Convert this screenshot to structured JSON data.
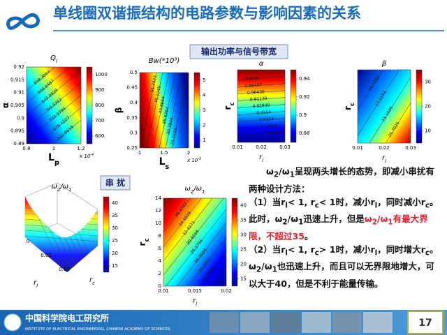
{
  "header": {
    "title": "单线圈双谐振结构的电路参数与影响因素的关系"
  },
  "sections": [
    {
      "label": "输出功率与信号带宽"
    },
    {
      "label": "串 扰"
    }
  ],
  "plots": [
    {
      "title": [
        "Q",
        "l"
      ],
      "xlabel": [
        "L",
        "p"
      ],
      "ylabel": [
        "α"
      ],
      "xmult": [
        "x 10",
        "-4"
      ],
      "xticks": [
        0.8,
        1,
        1.2
      ],
      "yticks": [
        0.89,
        0.895,
        0.9,
        0.905,
        0.91,
        0.915,
        0.92
      ],
      "cticks": [
        600,
        700,
        800,
        900,
        1000
      ],
      "contours": [
        "958.3064",
        "900.6497",
        "845.0929",
        "789.5362",
        "733.9794",
        "678.4227",
        "622.8659"
      ]
    },
    {
      "title": [
        "Bw(*10³)"
      ],
      "xlabel": [
        "L",
        "s"
      ],
      "ylabel": [
        "β"
      ],
      "xmult": [
        "x 10",
        "-5"
      ],
      "xticks": [
        1,
        1.5,
        2
      ],
      "yticks": [
        0.25,
        0.3,
        0.35,
        0.4,
        0.45,
        0.5
      ],
      "cticks": [
        1,
        2,
        3,
        4,
        5
      ],
      "contours": [
        "51.3423",
        "46.1045",
        "40.8664",
        "35.6284",
        "30.3904",
        "25.1524"
      ]
    },
    {
      "title": [
        "α"
      ],
      "xlabel": [
        "r",
        "l"
      ],
      "ylabel": [
        "r",
        "c"
      ],
      "xticks": [
        0.01,
        0.02,
        0.03
      ],
      "yticks": [],
      "cticks": [
        0.88,
        0.9,
        0.92,
        0.94
      ],
      "contours": [
        "0.89035",
        "0.89737",
        "0.90438",
        "0.91139",
        "0.91839",
        "0.9254",
        "0.9324",
        "0.93941",
        "0.94642"
      ]
    },
    {
      "title": [
        "β"
      ],
      "xlabel": [
        "r",
        "l"
      ],
      "ylabel": [
        "r",
        "c"
      ],
      "xticks": [
        0.01,
        0.02,
        0.03
      ],
      "yticks": [],
      "cticks": [
        10,
        20,
        30
      ],
      "contours": [
        "19.7152",
        "17.1152",
        "23.1026",
        "25.7026"
      ]
    },
    {
      "title": [
        "ω",
        "2",
        "/ω",
        "1"
      ],
      "xlabel": [
        "r",
        "l"
      ],
      "ylabel": [
        "r",
        "c"
      ],
      "xticks": [
        0,
        0.02,
        0.04
      ],
      "yticks": [],
      "cticks": [
        15,
        20,
        25,
        30,
        35,
        40
      ],
      "contours": []
    },
    {
      "title": [
        "ω",
        "2",
        "/ω",
        "1"
      ],
      "xlabel": [
        "r",
        "l"
      ],
      "ylabel": [
        "r",
        "c"
      ],
      "xticks": [
        0.01,
        0.015,
        0.02
      ],
      "yticks": [
        0,
        2,
        4,
        6,
        8,
        10,
        12,
        14
      ],
      "cticks": [
        15,
        20,
        25,
        30,
        35,
        40
      ],
      "contours": [
        "36.4747",
        "34.4509",
        "32.4271",
        "30.4034",
        "28.3796",
        "26.3558",
        "24.3321",
        "22.3083"
      ]
    }
  ],
  "text": [
    [
      {
        "text": "ω"
      },
      {
        "text": "2",
        "sub": true
      },
      {
        "text": "/ω"
      },
      {
        "text": "1",
        "sub": true
      },
      {
        "text": "呈现两头增长的态势，即减小串扰有两种设计方法："
      }
    ],
    [
      {
        "text": "（1）当r"
      },
      {
        "text": "l",
        "sub": true
      },
      {
        "text": "< 1, r"
      },
      {
        "text": "c",
        "sub": true
      },
      {
        "text": "< 1时，减小r"
      },
      {
        "text": "l",
        "sub": true
      },
      {
        "text": "，同时减小r"
      },
      {
        "text": "c",
        "sub": true
      },
      {
        "text": "。此时，ω"
      },
      {
        "text": "2",
        "sub": true
      },
      {
        "text": "/ω"
      },
      {
        "text": "1",
        "sub": true
      },
      {
        "text": "迅速上升，但是"
      },
      {
        "text": "ω",
        "red": true
      },
      {
        "text": "2",
        "sub": true,
        "red": true
      },
      {
        "text": "/ω",
        "red": true
      },
      {
        "text": "1",
        "sub": true,
        "red": true
      },
      {
        "text": "有最大界限，不超过35",
        "red": true
      },
      {
        "text": "。"
      }
    ],
    [
      {
        "text": "（2）当r"
      },
      {
        "text": "l",
        "sub": true
      },
      {
        "text": "< 1, r"
      },
      {
        "text": "c",
        "sub": true
      },
      {
        "text": "> 1时，减小r"
      },
      {
        "text": "l",
        "sub": true
      },
      {
        "text": "，同时增大r"
      },
      {
        "text": "c",
        "sub": true
      },
      {
        "text": "。ω"
      },
      {
        "text": "2",
        "sub": true
      },
      {
        "text": "/ω"
      },
      {
        "text": "1",
        "sub": true
      },
      {
        "text": "也迅速上升，而且可以无界限地增大，可以大于40，但是不利于能量传输。"
      }
    ]
  ],
  "footer": {
    "cn": "中国科学院电工研究所",
    "en": "INSTITUTE OF ELECTRICAL ENGINEERING, CHINESE ACADEMY OF SCIENCES",
    "page": "17"
  }
}
